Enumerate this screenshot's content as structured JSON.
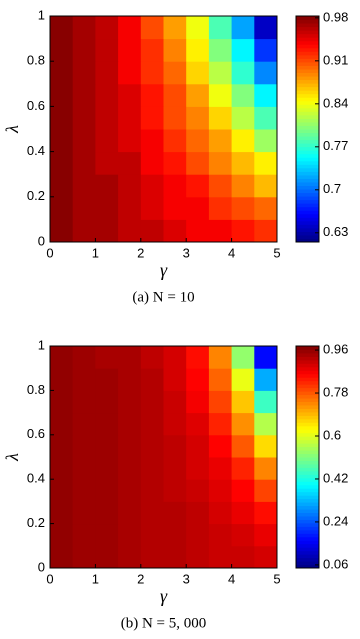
{
  "chart_data": [
    {
      "type": "heatmap",
      "caption": "(a) N = 10",
      "xlabel": "γ",
      "ylabel": "λ",
      "colormap": "jet",
      "x": [
        0.25,
        0.75,
        1.25,
        1.75,
        2.25,
        2.75,
        3.25,
        3.75,
        4.25,
        4.75
      ],
      "y": [
        0.05,
        0.15,
        0.25,
        0.35,
        0.45,
        0.55,
        0.65,
        0.75,
        0.85,
        0.95
      ],
      "z": [
        [
          0.98,
          0.97,
          0.97,
          0.96,
          0.96,
          0.95,
          0.94,
          0.94,
          0.93,
          0.92
        ],
        [
          0.98,
          0.97,
          0.97,
          0.96,
          0.95,
          0.94,
          0.94,
          0.92,
          0.91,
          0.9
        ],
        [
          0.98,
          0.97,
          0.97,
          0.96,
          0.95,
          0.94,
          0.93,
          0.91,
          0.89,
          0.87
        ],
        [
          0.98,
          0.97,
          0.96,
          0.96,
          0.94,
          0.93,
          0.91,
          0.89,
          0.87,
          0.85
        ],
        [
          0.98,
          0.97,
          0.96,
          0.95,
          0.94,
          0.92,
          0.9,
          0.88,
          0.85,
          0.81
        ],
        [
          0.98,
          0.97,
          0.96,
          0.95,
          0.93,
          0.91,
          0.89,
          0.86,
          0.82,
          0.78
        ],
        [
          0.98,
          0.97,
          0.96,
          0.95,
          0.93,
          0.91,
          0.88,
          0.84,
          0.8,
          0.75
        ],
        [
          0.98,
          0.97,
          0.96,
          0.94,
          0.92,
          0.9,
          0.86,
          0.82,
          0.77,
          0.71
        ],
        [
          0.98,
          0.97,
          0.96,
          0.94,
          0.92,
          0.89,
          0.85,
          0.8,
          0.75,
          0.68
        ],
        [
          0.98,
          0.97,
          0.96,
          0.94,
          0.91,
          0.88,
          0.84,
          0.78,
          0.72,
          0.64
        ]
      ],
      "xlim": [
        0,
        5
      ],
      "ylim": [
        0,
        1
      ],
      "xticks": [
        0,
        1,
        2,
        3,
        4,
        5
      ],
      "yticks": [
        0,
        0.2,
        0.4,
        0.6,
        0.8,
        1
      ],
      "clim": [
        0.615,
        0.983
      ],
      "cticks": [
        0.63,
        0.7,
        0.77,
        0.84,
        0.91,
        0.98
      ]
    },
    {
      "type": "heatmap",
      "caption": "(b) N = 5, 000",
      "xlabel": "γ",
      "ylabel": "λ",
      "colormap": "jet",
      "x": [
        0.25,
        0.75,
        1.25,
        1.75,
        2.25,
        2.75,
        3.25,
        3.75,
        4.25,
        4.75
      ],
      "y": [
        0.05,
        0.15,
        0.25,
        0.35,
        0.45,
        0.55,
        0.65,
        0.75,
        0.85,
        0.95
      ],
      "z": [
        [
          0.96,
          0.95,
          0.95,
          0.94,
          0.93,
          0.93,
          0.92,
          0.91,
          0.91,
          0.9
        ],
        [
          0.96,
          0.95,
          0.95,
          0.94,
          0.93,
          0.93,
          0.92,
          0.91,
          0.9,
          0.88
        ],
        [
          0.96,
          0.95,
          0.95,
          0.94,
          0.93,
          0.93,
          0.92,
          0.9,
          0.88,
          0.85
        ],
        [
          0.96,
          0.95,
          0.95,
          0.94,
          0.93,
          0.92,
          0.91,
          0.89,
          0.86,
          0.8
        ],
        [
          0.96,
          0.95,
          0.95,
          0.94,
          0.93,
          0.92,
          0.9,
          0.88,
          0.83,
          0.74
        ],
        [
          0.96,
          0.95,
          0.95,
          0.94,
          0.93,
          0.92,
          0.9,
          0.86,
          0.78,
          0.66
        ],
        [
          0.96,
          0.95,
          0.95,
          0.94,
          0.93,
          0.91,
          0.89,
          0.83,
          0.73,
          0.56
        ],
        [
          0.96,
          0.95,
          0.95,
          0.94,
          0.93,
          0.91,
          0.87,
          0.8,
          0.68,
          0.45
        ],
        [
          0.96,
          0.95,
          0.95,
          0.94,
          0.93,
          0.9,
          0.86,
          0.77,
          0.61,
          0.32
        ],
        [
          0.96,
          0.95,
          0.94,
          0.94,
          0.92,
          0.9,
          0.85,
          0.74,
          0.53,
          0.17
        ]
      ],
      "xlim": [
        0,
        5
      ],
      "ylim": [
        0,
        1
      ],
      "xticks": [
        0,
        1,
        2,
        3,
        4,
        5
      ],
      "yticks": [
        0,
        0.2,
        0.4,
        0.6,
        0.8,
        1
      ],
      "clim": [
        0.047,
        0.977
      ],
      "cticks": [
        0.06,
        0.24,
        0.42,
        0.6,
        0.78,
        0.96
      ]
    }
  ]
}
